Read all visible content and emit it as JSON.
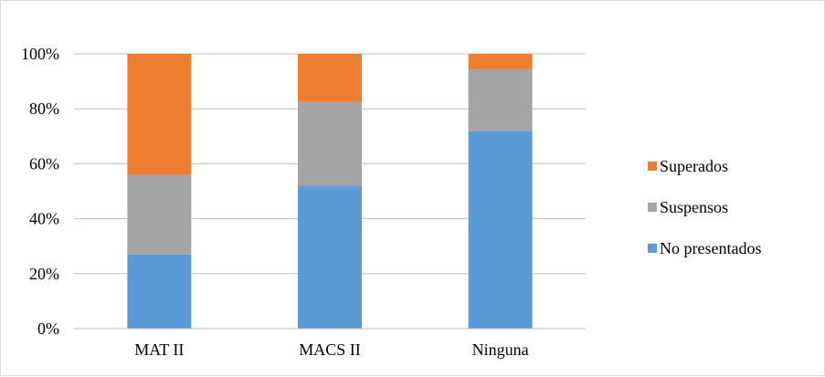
{
  "chart_data": {
    "type": "bar",
    "stacked": true,
    "percent_scale": true,
    "categories": [
      "MAT II",
      "MACS II",
      "Ninguna"
    ],
    "series": [
      {
        "name": "No presentados",
        "values": [
          27,
          52,
          72
        ],
        "color": "#5b9bd5"
      },
      {
        "name": "Suspensos",
        "values": [
          29,
          30.5,
          22.5
        ],
        "color": "#a5a5a5"
      },
      {
        "name": "Superados",
        "values": [
          44,
          17.5,
          5.5
        ],
        "color": "#ed7d31"
      }
    ],
    "ylim": [
      0,
      100
    ],
    "y_ticks": [
      "0%",
      "20%",
      "40%",
      "60%",
      "80%",
      "100%"
    ],
    "legend_order": [
      "Superados",
      "Suspensos",
      "No presentados"
    ],
    "legend_position": "right",
    "grid": true,
    "gridline_color": "#bfbfbf",
    "title": "",
    "xlabel": "",
    "ylabel": ""
  }
}
